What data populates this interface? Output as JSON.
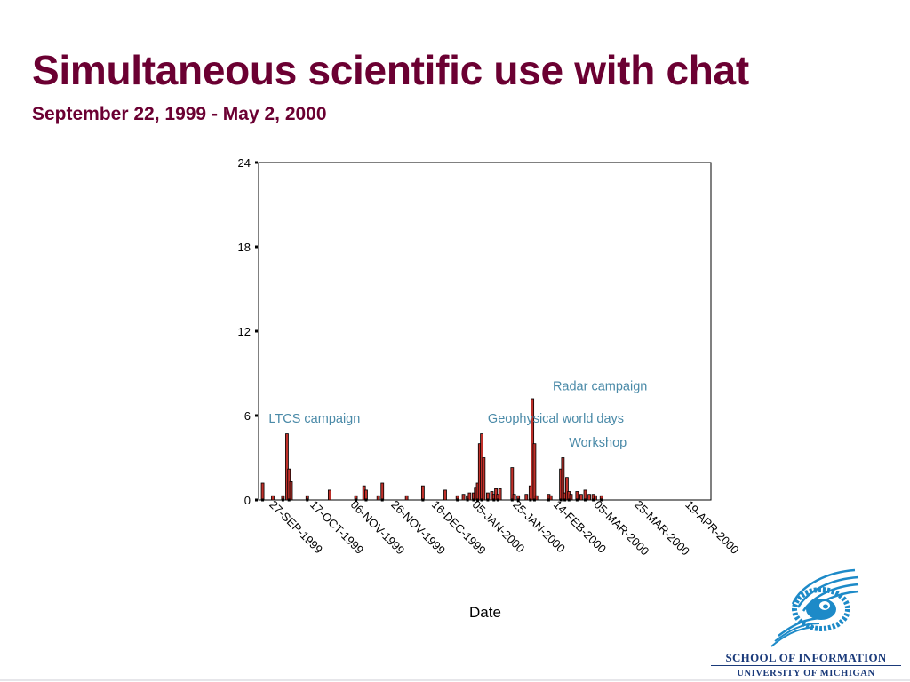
{
  "slide": {
    "title": "Simultaneous scientific use with chat",
    "subtitle": "September 22, 1999 - May 2, 2000"
  },
  "branding": {
    "school_line1": "SCHOOL OF INFORMATION",
    "school_line2": "UNIVERSITY OF MICHIGAN"
  },
  "colors": {
    "title": "#6b0032",
    "bar_fill": "#c0302a",
    "bar_outline": "#000000",
    "annotation": "#4a8aa8",
    "logo_blue": "#1d8ac8"
  },
  "chart_data": {
    "type": "bar",
    "xlabel": "Date",
    "ylabel": "",
    "ylim": [
      0,
      24
    ],
    "yticks": [
      0,
      6,
      12,
      18,
      24
    ],
    "xlim": [
      "1999-09-22",
      "2000-05-02"
    ],
    "xtick_labels": [
      {
        "date": "1999-09-27",
        "label": "27-SEP-1999"
      },
      {
        "date": "1999-10-17",
        "label": "17-OCT-1999"
      },
      {
        "date": "1999-11-06",
        "label": "06-NOV-1999"
      },
      {
        "date": "1999-11-26",
        "label": "26-NOV-1999"
      },
      {
        "date": "1999-12-16",
        "label": "16-DEC-1999"
      },
      {
        "date": "2000-01-05",
        "label": "05-JAN-2000"
      },
      {
        "date": "2000-01-25",
        "label": "25-JAN-2000"
      },
      {
        "date": "2000-02-14",
        "label": "14-FEB-2000"
      },
      {
        "date": "2000-03-05",
        "label": "05-MAR-2000"
      },
      {
        "date": "2000-03-25",
        "label": "25-MAR-2000"
      },
      {
        "date": "2000-04-19",
        "label": "19-APR-2000"
      }
    ],
    "grid": false,
    "annotations": [
      {
        "text": "LTCS campaign",
        "date": "1999-09-27",
        "y": 5.5
      },
      {
        "text": "Geophysical world days",
        "date": "2000-01-13",
        "y": 5.5
      },
      {
        "text": "Radar campaign",
        "date": "2000-02-14",
        "y": 7.8
      },
      {
        "text": "Workshop",
        "date": "2000-02-22",
        "y": 3.8
      }
    ],
    "series": [
      {
        "x": [
          "1999-09-24",
          "1999-09-29",
          "1999-10-04",
          "1999-10-06",
          "1999-10-07",
          "1999-10-08",
          "1999-10-16",
          "1999-10-27",
          "1999-11-09",
          "1999-11-13",
          "1999-11-14",
          "1999-11-20",
          "1999-11-22",
          "1999-12-04",
          "1999-12-12",
          "1999-12-23",
          "1999-12-29",
          "2000-01-01",
          "2000-01-03",
          "2000-01-04",
          "2000-01-06",
          "2000-01-07",
          "2000-01-08",
          "2000-01-09",
          "2000-01-10",
          "2000-01-11",
          "2000-01-13",
          "2000-01-15",
          "2000-01-16",
          "2000-01-17",
          "2000-01-18",
          "2000-01-19",
          "2000-01-25",
          "2000-01-26",
          "2000-01-28",
          "2000-02-01",
          "2000-02-03",
          "2000-02-04",
          "2000-02-05",
          "2000-02-06",
          "2000-02-12",
          "2000-02-13",
          "2000-02-18",
          "2000-02-19",
          "2000-02-20",
          "2000-02-21",
          "2000-02-22",
          "2000-02-23",
          "2000-02-26",
          "2000-02-28",
          "2000-03-01",
          "2000-03-03",
          "2000-03-05",
          "2000-03-06",
          "2000-03-09"
        ],
        "values": [
          1.2,
          0.3,
          0.3,
          4.7,
          2.2,
          1.3,
          0.3,
          0.7,
          0.3,
          1.0,
          0.7,
          0.3,
          1.2,
          0.3,
          1.0,
          0.7,
          0.3,
          0.4,
          0.3,
          0.5,
          0.5,
          0.9,
          1.2,
          4.0,
          4.7,
          3.0,
          0.5,
          0.6,
          0.4,
          0.8,
          0.4,
          0.8,
          2.3,
          0.4,
          0.3,
          0.4,
          1.0,
          7.2,
          4.0,
          0.3,
          0.4,
          0.3,
          2.2,
          3.0,
          0.5,
          1.6,
          0.6,
          0.4,
          0.6,
          0.4,
          0.7,
          0.4,
          0.4,
          0.3,
          0.3
        ]
      }
    ]
  }
}
